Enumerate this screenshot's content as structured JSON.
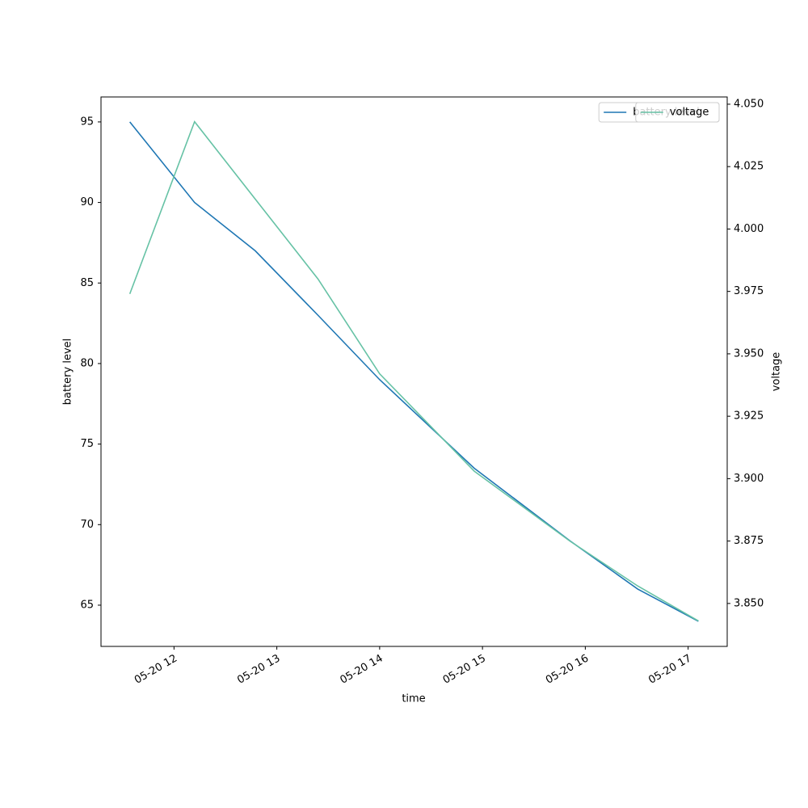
{
  "chart_data": {
    "type": "line",
    "x_label": "time",
    "y_label": "battery level",
    "y2_label": "voltage",
    "x": [
      11.57,
      12.2,
      12.79,
      13.4,
      14.0,
      14.92,
      15.85,
      16.51,
      17.1
    ],
    "series": [
      {
        "name": "battery level",
        "color": "#1f77b4",
        "values": [
          95,
          90,
          87,
          83,
          79,
          73.5,
          69,
          66,
          64
        ]
      },
      {
        "name": "voltage",
        "color": "#66c2a5",
        "axis": "y2",
        "values": [
          3.974,
          4.043,
          4.012,
          3.98,
          3.942,
          3.903,
          3.875,
          3.857,
          3.843
        ]
      }
    ],
    "xlim": [
      11.29,
      17.38
    ],
    "xticks": [
      {
        "value": 12,
        "label": "05-20 12"
      },
      {
        "value": 13,
        "label": "05-20 13"
      },
      {
        "value": 14,
        "label": "05-20 14"
      },
      {
        "value": 15,
        "label": "05-20 15"
      },
      {
        "value": 16,
        "label": "05-20 16"
      },
      {
        "value": 17,
        "label": "05-20 17"
      }
    ],
    "ylim": [
      62.44,
      96.55
    ],
    "yticks": [
      65,
      70,
      75,
      80,
      85,
      90,
      95
    ],
    "y2lim": [
      3.8328,
      4.0529
    ],
    "y2ticks": [
      {
        "value": 3.85,
        "label": "3.850"
      },
      3.875,
      {
        "value": 3.9,
        "label": "3.900"
      },
      3.925,
      {
        "value": 3.95,
        "label": "3.950"
      },
      3.975,
      {
        "value": 4.0,
        "label": "4.000"
      },
      4.025,
      {
        "value": 4.05,
        "label": "4.050"
      }
    ],
    "legend": "upper right"
  }
}
